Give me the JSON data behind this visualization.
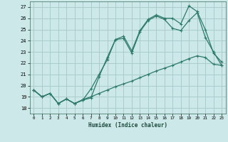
{
  "xlabel": "Humidex (Indice chaleur)",
  "bg_color": "#cce8e8",
  "grid_color": "#aacccc",
  "line_color": "#2d7a6a",
  "xlim": [
    -0.5,
    23.5
  ],
  "ylim": [
    17.5,
    27.5
  ],
  "yticks": [
    18,
    19,
    20,
    21,
    22,
    23,
    24,
    25,
    26,
    27
  ],
  "xticks": [
    0,
    1,
    2,
    3,
    4,
    5,
    6,
    7,
    8,
    9,
    10,
    11,
    12,
    13,
    14,
    15,
    16,
    17,
    18,
    19,
    20,
    21,
    22,
    23
  ],
  "line1_x": [
    0,
    1,
    2,
    3,
    4,
    5,
    6,
    7,
    8,
    9,
    10,
    11,
    12,
    13,
    14,
    15,
    16,
    17,
    18,
    19,
    20,
    21,
    22,
    23
  ],
  "line1_y": [
    19.6,
    19.0,
    19.3,
    18.4,
    18.8,
    18.4,
    18.7,
    19.7,
    21.0,
    22.3,
    24.1,
    24.4,
    23.1,
    24.9,
    25.9,
    26.3,
    26.0,
    26.0,
    25.5,
    27.1,
    26.6,
    25.0,
    22.9,
    22.1
  ],
  "line2_x": [
    0,
    1,
    2,
    3,
    4,
    5,
    6,
    7,
    8,
    9,
    10,
    11,
    12,
    13,
    14,
    15,
    16,
    17,
    18,
    19,
    20,
    21,
    22,
    23
  ],
  "line2_y": [
    19.6,
    19.0,
    19.3,
    18.4,
    18.8,
    18.4,
    18.7,
    18.9,
    20.8,
    22.5,
    24.1,
    24.2,
    22.9,
    24.8,
    25.8,
    26.2,
    25.9,
    25.1,
    24.9,
    25.8,
    26.5,
    24.3,
    23.0,
    21.8
  ],
  "line3_x": [
    0,
    1,
    2,
    3,
    4,
    5,
    6,
    7,
    8,
    9,
    10,
    11,
    12,
    13,
    14,
    15,
    16,
    17,
    18,
    19,
    20,
    21,
    22,
    23
  ],
  "line3_y": [
    19.6,
    19.0,
    19.3,
    18.4,
    18.8,
    18.4,
    18.75,
    19.0,
    19.3,
    19.6,
    19.9,
    20.15,
    20.4,
    20.7,
    21.0,
    21.3,
    21.55,
    21.8,
    22.1,
    22.4,
    22.65,
    22.5,
    21.9,
    21.8
  ]
}
